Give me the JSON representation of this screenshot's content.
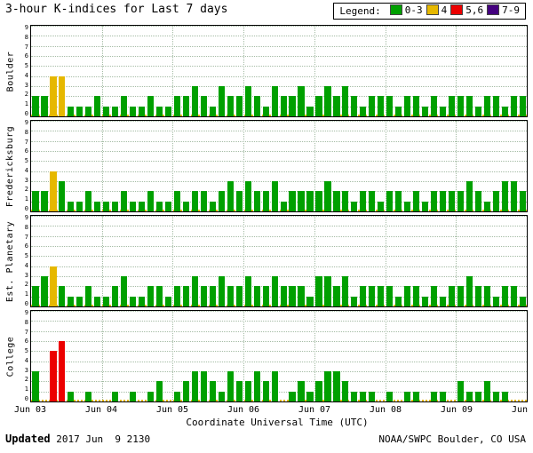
{
  "title": "3-hour K-indices for Last 7 days",
  "legend": {
    "label": "Legend:",
    "items": [
      {
        "label": "0-3",
        "color": "#00a000"
      },
      {
        "label": "4",
        "color": "#e6b800"
      },
      {
        "label": "5,6",
        "color": "#ec0000"
      },
      {
        "label": "7-9",
        "color": "#44007f"
      }
    ]
  },
  "xaxis": {
    "title": "Coordinate Universal Time (UTC)",
    "ticks": [
      "Jun 03",
      "Jun 04",
      "Jun 05",
      "Jun 06",
      "Jun 07",
      "Jun 08",
      "Jun 09",
      "Jun 10"
    ]
  },
  "footer": {
    "updated_label": "Updated",
    "updated_value": "2017 Jun  9 2130",
    "credit": "NOAA/SWPC Boulder, CO USA"
  },
  "chart_data": {
    "type": "bar",
    "title": "3-hour K-indices for Last 7 days",
    "ylim": [
      0,
      9
    ],
    "interval_hours": 3,
    "x_start": "Jun 03",
    "x_end": "Jun 10",
    "x_tick_labels": [
      "Jun 03",
      "Jun 04",
      "Jun 05",
      "Jun 06",
      "Jun 07",
      "Jun 08",
      "Jun 09",
      "Jun 10"
    ],
    "colors": {
      "green": "#00a000",
      "yellow": "#e6b800",
      "red": "#ec0000",
      "purple": "#44007f"
    },
    "color_thresholds": {
      "green": "0-3",
      "yellow": "4",
      "red": "5,6",
      "purple": "7-9"
    },
    "panels": [
      {
        "station": "Boulder",
        "values": [
          2,
          2,
          4,
          4,
          1,
          1,
          1,
          2,
          1,
          1,
          2,
          1,
          1,
          2,
          1,
          1,
          2,
          2,
          3,
          2,
          1,
          3,
          2,
          2,
          3,
          2,
          1,
          3,
          2,
          2,
          3,
          1,
          2,
          3,
          2,
          3,
          2,
          1,
          2,
          2,
          2,
          1,
          2,
          2,
          1,
          2,
          1,
          2,
          2,
          2,
          1,
          2,
          2,
          1,
          2,
          2
        ]
      },
      {
        "station": "Fredericksburg",
        "values": [
          2,
          2,
          4,
          3,
          1,
          1,
          2,
          1,
          1,
          1,
          2,
          1,
          1,
          2,
          1,
          1,
          2,
          1,
          2,
          2,
          1,
          2,
          3,
          2,
          3,
          2,
          2,
          3,
          1,
          2,
          2,
          2,
          2,
          3,
          2,
          2,
          1,
          2,
          2,
          1,
          2,
          2,
          1,
          2,
          1,
          2,
          2,
          2,
          2,
          3,
          2,
          1,
          2,
          3,
          3,
          2
        ]
      },
      {
        "station": "Est. Planetary",
        "values": [
          2,
          3,
          4,
          2,
          1,
          1,
          2,
          1,
          1,
          2,
          3,
          1,
          1,
          2,
          2,
          1,
          2,
          2,
          3,
          2,
          2,
          3,
          2,
          2,
          3,
          2,
          2,
          3,
          2,
          2,
          2,
          1,
          3,
          3,
          2,
          3,
          1,
          2,
          2,
          2,
          2,
          1,
          2,
          2,
          1,
          2,
          1,
          2,
          2,
          3,
          2,
          2,
          1,
          2,
          2,
          1
        ]
      },
      {
        "station": "College",
        "values": [
          3,
          0,
          5,
          6,
          1,
          0,
          1,
          0,
          0,
          1,
          0,
          1,
          0,
          1,
          2,
          0,
          1,
          2,
          3,
          3,
          2,
          1,
          3,
          2,
          2,
          3,
          2,
          3,
          0,
          1,
          2,
          1,
          2,
          3,
          3,
          2,
          1,
          1,
          1,
          0,
          1,
          0,
          1,
          1,
          0,
          1,
          1,
          0,
          2,
          1,
          1,
          2,
          1,
          1,
          0,
          0
        ]
      }
    ]
  }
}
